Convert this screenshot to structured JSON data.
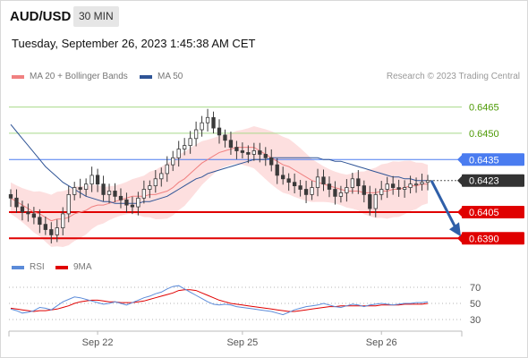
{
  "header": {
    "symbol": "AUD/USD",
    "timeframe": "30 MIN",
    "datetime": "Tuesday, September 26, 2023 1:45:38 AM CET"
  },
  "legend": {
    "ma20_label": "MA 20 + Bollinger Bands",
    "ma50_label": "MA 50",
    "credit": "Research © 2023 Trading Central",
    "rsi_label": "RSI",
    "ma9_label": "9MA"
  },
  "colors": {
    "ma20": "#f08080",
    "bands_fill": "#fdd9d9",
    "ma50": "#2f5496",
    "candle": "#3a3a3a",
    "resistance_green": "#a8d98a",
    "resistance_blue": "#4a7cf0",
    "support_red": "#e00000",
    "current_price_bg": "#333333",
    "arrow": "#2f5fa8",
    "rsi": "#5b8bd9",
    "rsi_ma": "#e00000",
    "green_label_text": "#4e9a06"
  },
  "chart_data": [
    {
      "type": "candlestick",
      "title": "AUD/USD 30 MIN",
      "x_ticks": [
        "Sep 22",
        "Sep 25",
        "Sep 26"
      ],
      "ylim": [
        0.6383,
        0.6475
      ],
      "levels": [
        {
          "value": 0.6465,
          "label": "0.6465",
          "kind": "resistance-green"
        },
        {
          "value": 0.645,
          "label": "0.6450",
          "kind": "resistance-green"
        },
        {
          "value": 0.6435,
          "label": "0.6435",
          "kind": "resistance-blue"
        },
        {
          "value": 0.6423,
          "label": "0.6423",
          "kind": "current-price"
        },
        {
          "value": 0.6405,
          "label": "0.6405",
          "kind": "support-red"
        },
        {
          "value": 0.639,
          "label": "0.6390",
          "kind": "support-red"
        }
      ],
      "close_series": [
        0.6413,
        0.6408,
        0.6405,
        0.6404,
        0.6402,
        0.6398,
        0.6395,
        0.6392,
        0.6396,
        0.6404,
        0.6415,
        0.6419,
        0.6418,
        0.6421,
        0.6426,
        0.6421,
        0.6415,
        0.6417,
        0.6414,
        0.6412,
        0.6409,
        0.6408,
        0.6413,
        0.6418,
        0.642,
        0.6424,
        0.6427,
        0.6432,
        0.6436,
        0.6441,
        0.6443,
        0.6447,
        0.6452,
        0.6456,
        0.6459,
        0.6453,
        0.6449,
        0.6446,
        0.6442,
        0.644,
        0.6439,
        0.6438,
        0.644,
        0.6438,
        0.6436,
        0.6432,
        0.6426,
        0.6424,
        0.6422,
        0.642,
        0.6418,
        0.6415,
        0.6419,
        0.6425,
        0.6421,
        0.6418,
        0.6414,
        0.6416,
        0.6419,
        0.6424,
        0.642,
        0.6415,
        0.6407,
        0.6415,
        0.6418,
        0.6421,
        0.6419,
        0.6418,
        0.6419,
        0.6421,
        0.6421,
        0.6422,
        0.6423
      ],
      "ma20_series": [
        0.6413,
        0.6411,
        0.6409,
        0.6407,
        0.6405,
        0.6404,
        0.6402,
        0.64,
        0.6401,
        0.6401,
        0.6402,
        0.6404,
        0.6405,
        0.6406,
        0.6408,
        0.6409,
        0.6409,
        0.641,
        0.6411,
        0.6412,
        0.6413,
        0.6414,
        0.6414,
        0.6414,
        0.6415,
        0.6415,
        0.6416,
        0.6417,
        0.6419,
        0.6422,
        0.6424,
        0.6427,
        0.643,
        0.6433,
        0.6435,
        0.6437,
        0.6439,
        0.644,
        0.6441,
        0.6442,
        0.6442,
        0.6442,
        0.6442,
        0.644,
        0.6438,
        0.6436,
        0.6434,
        0.6432,
        0.6431,
        0.6429,
        0.6427,
        0.6425,
        0.6423,
        0.6422,
        0.6421,
        0.642,
        0.6419,
        0.6418,
        0.6417,
        0.6417,
        0.6417,
        0.6416,
        0.6416,
        0.6416,
        0.6417,
        0.6417,
        0.6418,
        0.6418,
        0.6419,
        0.642,
        0.642,
        0.6421,
        0.6421
      ],
      "ma50_series": [
        0.6455,
        0.6451,
        0.6447,
        0.6443,
        0.6439,
        0.6435,
        0.6431,
        0.6428,
        0.6425,
        0.6422,
        0.642,
        0.6418,
        0.6416,
        0.6414,
        0.6413,
        0.6412,
        0.6411,
        0.6411,
        0.641,
        0.641,
        0.641,
        0.641,
        0.641,
        0.6411,
        0.6411,
        0.6412,
        0.6413,
        0.6414,
        0.6416,
        0.6418,
        0.642,
        0.6422,
        0.6424,
        0.6425,
        0.6427,
        0.6428,
        0.6429,
        0.643,
        0.6431,
        0.6432,
        0.6433,
        0.6434,
        0.6435,
        0.6435,
        0.6435,
        0.6436,
        0.6436,
        0.6436,
        0.6436,
        0.6436,
        0.6436,
        0.6436,
        0.6436,
        0.6436,
        0.6435,
        0.6435,
        0.6434,
        0.6434,
        0.6433,
        0.6432,
        0.6431,
        0.643,
        0.6429,
        0.6428,
        0.6427,
        0.6426,
        0.6425,
        0.6425,
        0.6424,
        0.6424,
        0.6423,
        0.6423,
        0.6423
      ]
    },
    {
      "type": "line",
      "title": "RSI",
      "ylim": [
        20,
        80
      ],
      "y_ticks": [
        70,
        50,
        30
      ],
      "series": [
        {
          "name": "RSI",
          "values": [
            43,
            41,
            38,
            39,
            41,
            45,
            44,
            42,
            47,
            52,
            55,
            58,
            57,
            55,
            53,
            51,
            49,
            50,
            52,
            50,
            48,
            51,
            54,
            57,
            59,
            62,
            64,
            68,
            71,
            72,
            68,
            64,
            60,
            56,
            52,
            49,
            48,
            49,
            48,
            46,
            45,
            44,
            43,
            42,
            41,
            40,
            38,
            36,
            39,
            42,
            44,
            46,
            47,
            48,
            50,
            48,
            46,
            45,
            47,
            49,
            48,
            46,
            48,
            49,
            50,
            49,
            48,
            49,
            50,
            50,
            51,
            51,
            52
          ]
        },
        {
          "name": "9MA",
          "values": [
            44,
            43,
            42,
            41,
            40,
            41,
            41,
            42,
            43,
            45,
            47,
            50,
            52,
            53,
            54,
            54,
            53,
            52,
            52,
            51,
            51,
            51,
            52,
            53,
            55,
            57,
            59,
            61,
            63,
            66,
            67,
            67,
            66,
            63,
            60,
            57,
            54,
            52,
            50,
            49,
            48,
            47,
            46,
            45,
            44,
            43,
            42,
            41,
            40,
            40,
            41,
            42,
            43,
            44,
            45,
            46,
            46,
            47,
            47,
            47,
            47,
            47,
            47,
            47,
            48,
            48,
            48,
            48,
            49,
            49,
            49,
            49,
            50
          ]
        }
      ]
    }
  ]
}
